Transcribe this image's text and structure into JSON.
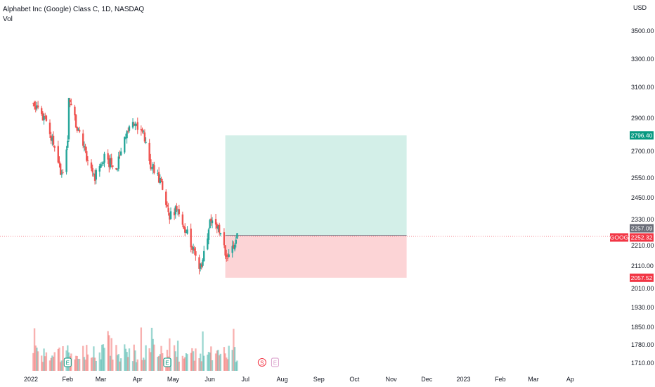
{
  "header": {
    "title": "Alphabet Inc (Google) Class C, 1D, NASDAQ",
    "volume_label": "Vol"
  },
  "chart_data": {
    "type": "candlestick",
    "title": "Alphabet Inc (Google) Class C, 1D, NASDAQ",
    "currency": "USD",
    "y_tick_labels": [
      "3500.00",
      "3300.00",
      "3100.00",
      "2900.00",
      "2700.00",
      "2550.00",
      "2450.00",
      "2330.00",
      "2210.00",
      "2110.00",
      "2010.00",
      "1930.00",
      "1850.00",
      "1780.00",
      "1710.00"
    ],
    "x_tick_labels": [
      "2022",
      "Feb",
      "Mar",
      "Apr",
      "May",
      "Jun",
      "Jul",
      "Aug",
      "Sep",
      "Oct",
      "Nov",
      "Dec",
      "2023",
      "Feb",
      "Mar",
      "Ap"
    ],
    "price_points": [
      [
        "2022-01-03",
        2990
      ],
      [
        "2022-01-14",
        2890
      ],
      [
        "2022-01-21",
        2700
      ],
      [
        "2022-01-27",
        2560
      ],
      [
        "2022-02-01",
        2760
      ],
      [
        "2022-02-02",
        3040
      ],
      [
        "2022-02-08",
        2860
      ],
      [
        "2022-02-18",
        2650
      ],
      [
        "2022-02-24",
        2560
      ],
      [
        "2022-03-04",
        2660
      ],
      [
        "2022-03-14",
        2600
      ],
      [
        "2022-03-21",
        2800
      ],
      [
        "2022-03-29",
        2880
      ],
      [
        "2022-04-06",
        2800
      ],
      [
        "2022-04-11",
        2640
      ],
      [
        "2022-04-20",
        2540
      ],
      [
        "2022-04-27",
        2350
      ],
      [
        "2022-05-04",
        2380
      ],
      [
        "2022-05-11",
        2290
      ],
      [
        "2022-05-18",
        2200
      ],
      [
        "2022-05-24",
        2100
      ],
      [
        "2022-05-31",
        2290
      ],
      [
        "2022-06-03",
        2340
      ],
      [
        "2022-06-09",
        2290
      ],
      [
        "2022-06-16",
        2130
      ],
      [
        "2022-06-22",
        2230
      ],
      [
        "2022-06-24",
        2252
      ]
    ],
    "position": {
      "target": 2796.4,
      "entry": 2257.09,
      "stop": 2057.52,
      "start": "2022-06-14",
      "end": "2022-11-14"
    },
    "current_price": {
      "symbol": "GOOG",
      "value": "2252.32"
    },
    "target_label": "2796.40",
    "entry_label": "2257.09",
    "stop_label": "2057.52",
    "events": [
      {
        "type": "earnings",
        "symbol": "E",
        "date": "2022-02-01"
      },
      {
        "type": "earnings",
        "symbol": "E",
        "date": "2022-04-26"
      },
      {
        "type": "split",
        "symbol": "S",
        "date": "2022-07-15"
      },
      {
        "type": "earnings",
        "symbol": "E",
        "date": "2022-07-26"
      }
    ],
    "colors": {
      "up": "#26a69a",
      "down": "#ef5350",
      "profit_zone": "#d3efe8",
      "loss_zone": "#fcd4d6",
      "target_badge": "#089981",
      "stop_badge": "#f23645",
      "entry_badge": "#6a6d78",
      "price_badge": "#f23645"
    }
  }
}
